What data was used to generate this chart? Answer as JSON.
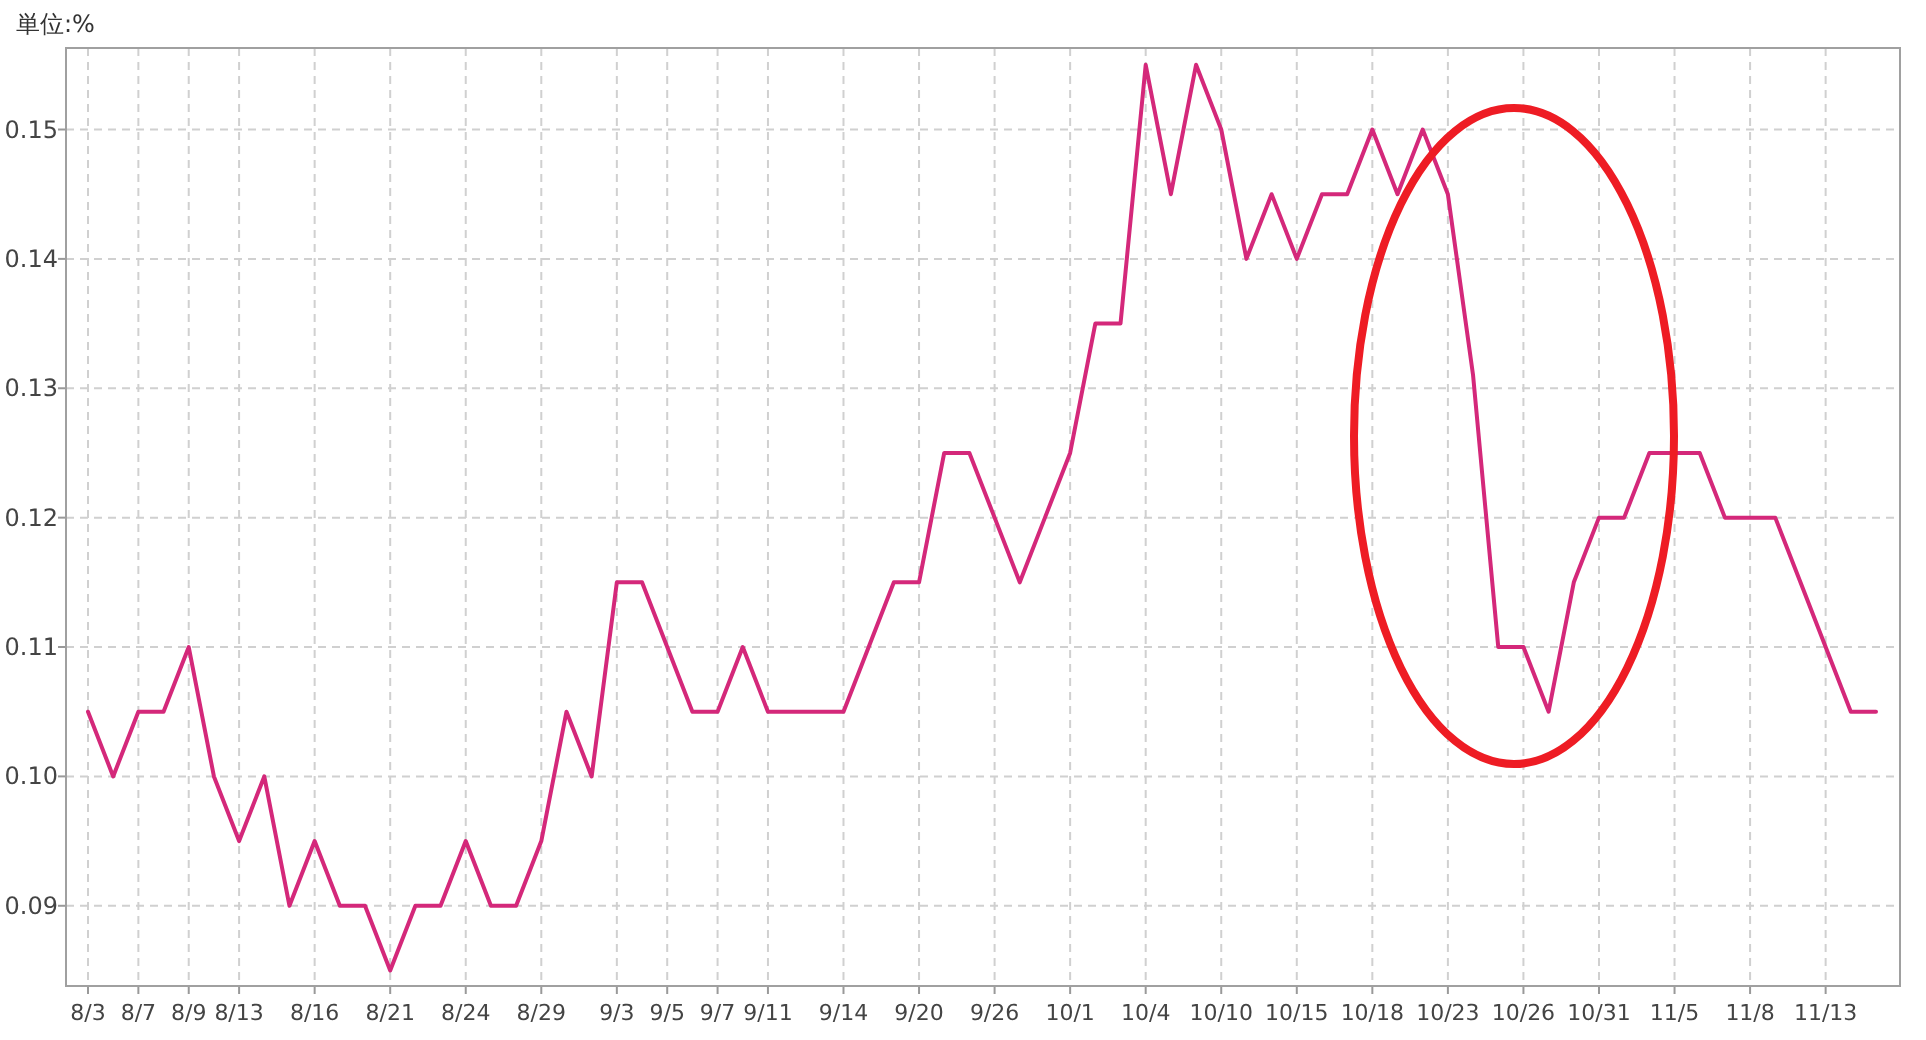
{
  "chart_data": {
    "type": "line",
    "title": "単位:%",
    "categories": [
      "8/3",
      null,
      "8/7",
      null,
      "8/9",
      null,
      "8/13",
      null,
      null,
      "8/16",
      null,
      null,
      "8/21",
      null,
      null,
      "8/24",
      null,
      null,
      "8/29",
      null,
      null,
      "9/3",
      null,
      "9/5",
      null,
      "9/7",
      null,
      "9/11",
      null,
      null,
      "9/14",
      null,
      null,
      "9/20",
      null,
      null,
      "9/26",
      null,
      null,
      "10/1",
      null,
      null,
      "10/4",
      null,
      null,
      "10/10",
      null,
      null,
      "10/15",
      null,
      null,
      "10/18",
      null,
      null,
      "10/23",
      null,
      null,
      "10/26",
      null,
      null,
      "10/31",
      null,
      null,
      "11/5",
      null,
      null,
      "11/8",
      null,
      null,
      "11/13",
      null,
      null
    ],
    "values": [
      0.105,
      0.1,
      0.105,
      0.105,
      0.11,
      0.1,
      0.095,
      0.1,
      0.09,
      0.095,
      0.09,
      0.09,
      0.085,
      0.09,
      0.09,
      0.095,
      0.09,
      0.09,
      0.095,
      0.105,
      0.1,
      0.115,
      0.115,
      0.11,
      0.105,
      0.105,
      0.11,
      0.105,
      0.105,
      0.105,
      0.105,
      0.11,
      0.115,
      0.115,
      0.125,
      0.125,
      0.12,
      0.115,
      0.12,
      0.125,
      0.135,
      0.135,
      0.155,
      0.145,
      0.155,
      0.15,
      0.14,
      0.145,
      0.14,
      0.145,
      0.145,
      0.15,
      0.145,
      0.15,
      0.145,
      0.131,
      0.11,
      0.11,
      0.105,
      0.115,
      0.12,
      0.12,
      0.125,
      0.125,
      0.125,
      0.12,
      0.12,
      0.12,
      0.115,
      0.11,
      0.105,
      0.105
    ],
    "color": "#d4287a",
    "ylim": [
      0.0838,
      0.1563
    ],
    "yticks": [
      {
        "value": 0.09,
        "label": "0.09"
      },
      {
        "value": 0.1,
        "label": "0.10"
      },
      {
        "value": 0.11,
        "label": "0.11"
      },
      {
        "value": 0.12,
        "label": "0.12"
      },
      {
        "value": 0.13,
        "label": "0.13"
      },
      {
        "value": 0.14,
        "label": "0.14"
      },
      {
        "value": 0.15,
        "label": "0.15"
      }
    ],
    "grid": true,
    "line_style": "solid"
  }
}
